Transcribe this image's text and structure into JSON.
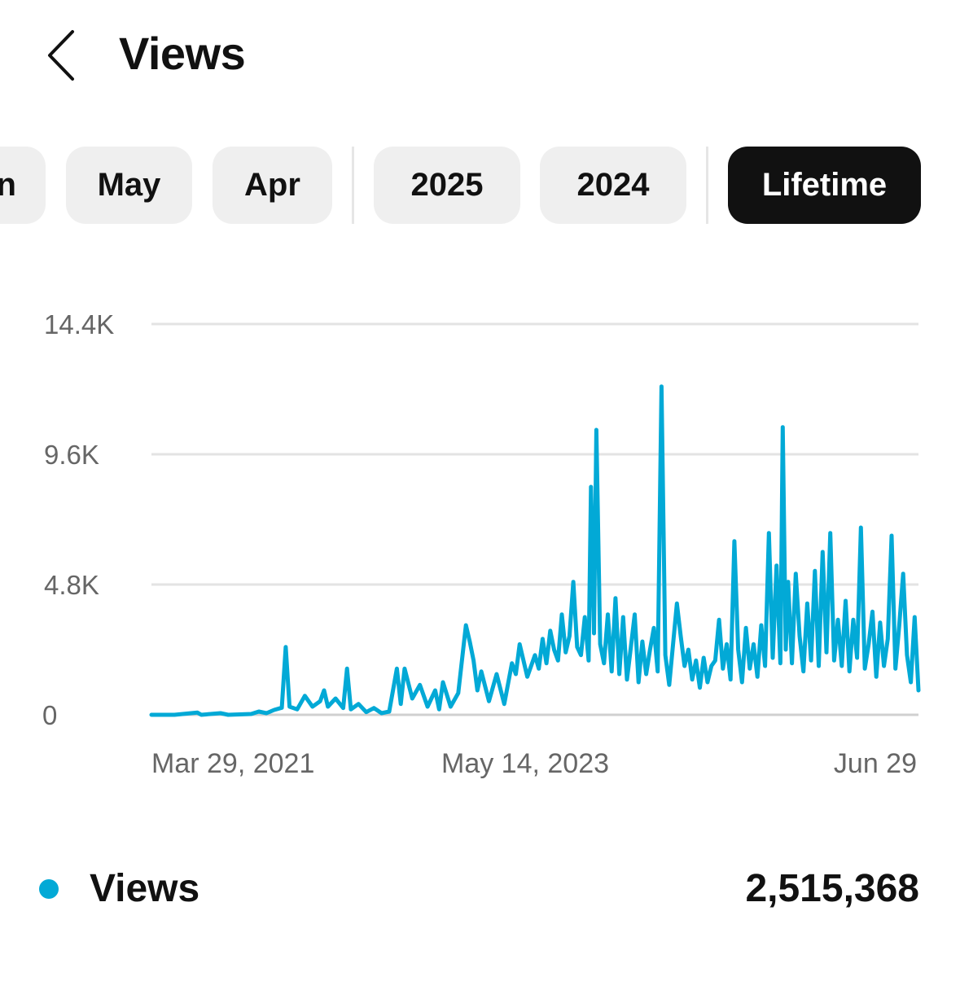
{
  "header": {
    "title": "Views",
    "back_icon": "chevron-left-icon"
  },
  "filters": {
    "chips": [
      {
        "label": "Jun",
        "active": false
      },
      {
        "label": "May",
        "active": false
      },
      {
        "label": "Apr",
        "active": false
      },
      {
        "label": "2025",
        "active": false
      },
      {
        "label": "2024",
        "active": false
      },
      {
        "label": "Lifetime",
        "active": true
      }
    ]
  },
  "colors": {
    "series": "#02a9d6",
    "active_chip": "#111111",
    "chip": "#efefef",
    "grid": "#e3e3e3",
    "axis_text": "#666666"
  },
  "chart_data": {
    "type": "line",
    "ylim": [
      0,
      14400
    ],
    "yticks": [
      "0",
      "4.8K",
      "9.6K",
      "14.4K"
    ],
    "ytick_values": [
      0,
      4800,
      9600,
      14400
    ],
    "xtick_labels": [
      "Mar 29, 2021",
      "May 14, 2023",
      "Jun 29"
    ],
    "grid": true,
    "series": [
      {
        "name": "Views",
        "color": "#02a9d6",
        "points": [
          [
            0.0,
            0
          ],
          [
            0.03,
            0
          ],
          [
            0.06,
            80
          ],
          [
            0.065,
            0
          ],
          [
            0.09,
            60
          ],
          [
            0.1,
            0
          ],
          [
            0.13,
            30
          ],
          [
            0.14,
            120
          ],
          [
            0.15,
            60
          ],
          [
            0.16,
            180
          ],
          [
            0.17,
            260
          ],
          [
            0.175,
            2500
          ],
          [
            0.18,
            300
          ],
          [
            0.19,
            200
          ],
          [
            0.2,
            700
          ],
          [
            0.21,
            300
          ],
          [
            0.22,
            500
          ],
          [
            0.225,
            900
          ],
          [
            0.23,
            300
          ],
          [
            0.24,
            600
          ],
          [
            0.25,
            250
          ],
          [
            0.255,
            1700
          ],
          [
            0.26,
            200
          ],
          [
            0.27,
            400
          ],
          [
            0.28,
            100
          ],
          [
            0.29,
            250
          ],
          [
            0.3,
            60
          ],
          [
            0.31,
            120
          ],
          [
            0.32,
            1700
          ],
          [
            0.325,
            400
          ],
          [
            0.33,
            1700
          ],
          [
            0.34,
            600
          ],
          [
            0.35,
            1100
          ],
          [
            0.36,
            300
          ],
          [
            0.37,
            900
          ],
          [
            0.375,
            200
          ],
          [
            0.38,
            1200
          ],
          [
            0.39,
            300
          ],
          [
            0.4,
            800
          ],
          [
            0.41,
            3300
          ],
          [
            0.415,
            2700
          ],
          [
            0.42,
            2000
          ],
          [
            0.425,
            900
          ],
          [
            0.43,
            1600
          ],
          [
            0.44,
            500
          ],
          [
            0.45,
            1500
          ],
          [
            0.46,
            400
          ],
          [
            0.47,
            1900
          ],
          [
            0.475,
            1500
          ],
          [
            0.48,
            2600
          ],
          [
            0.49,
            1400
          ],
          [
            0.5,
            2200
          ],
          [
            0.505,
            1700
          ],
          [
            0.51,
            2800
          ],
          [
            0.515,
            1900
          ],
          [
            0.52,
            3100
          ],
          [
            0.525,
            2400
          ],
          [
            0.53,
            2000
          ],
          [
            0.535,
            3700
          ],
          [
            0.54,
            2300
          ],
          [
            0.545,
            2900
          ],
          [
            0.55,
            4900
          ],
          [
            0.555,
            2500
          ],
          [
            0.56,
            2200
          ],
          [
            0.565,
            3600
          ],
          [
            0.57,
            2000
          ],
          [
            0.573,
            8400
          ],
          [
            0.577,
            3000
          ],
          [
            0.58,
            10500
          ],
          [
            0.585,
            2600
          ],
          [
            0.59,
            1900
          ],
          [
            0.595,
            3700
          ],
          [
            0.6,
            1600
          ],
          [
            0.605,
            4300
          ],
          [
            0.61,
            1500
          ],
          [
            0.615,
            3600
          ],
          [
            0.62,
            1300
          ],
          [
            0.625,
            2500
          ],
          [
            0.63,
            3700
          ],
          [
            0.635,
            1200
          ],
          [
            0.64,
            2700
          ],
          [
            0.645,
            1500
          ],
          [
            0.65,
            2400
          ],
          [
            0.655,
            3200
          ],
          [
            0.66,
            1600
          ],
          [
            0.665,
            12100
          ],
          [
            0.67,
            2200
          ],
          [
            0.675,
            1100
          ],
          [
            0.68,
            2600
          ],
          [
            0.685,
            4100
          ],
          [
            0.69,
            2900
          ],
          [
            0.695,
            1800
          ],
          [
            0.7,
            2400
          ],
          [
            0.705,
            1300
          ],
          [
            0.71,
            2000
          ],
          [
            0.715,
            1000
          ],
          [
            0.72,
            2100
          ],
          [
            0.725,
            1200
          ],
          [
            0.73,
            1800
          ],
          [
            0.735,
            2000
          ],
          [
            0.74,
            3500
          ],
          [
            0.745,
            1700
          ],
          [
            0.75,
            2600
          ],
          [
            0.755,
            1300
          ],
          [
            0.76,
            6400
          ],
          [
            0.765,
            2400
          ],
          [
            0.77,
            1200
          ],
          [
            0.775,
            3200
          ],
          [
            0.78,
            1700
          ],
          [
            0.785,
            2600
          ],
          [
            0.79,
            1400
          ],
          [
            0.795,
            3300
          ],
          [
            0.8,
            1800
          ],
          [
            0.805,
            6700
          ],
          [
            0.81,
            2100
          ],
          [
            0.815,
            5500
          ],
          [
            0.82,
            1900
          ],
          [
            0.823,
            10600
          ],
          [
            0.827,
            2400
          ],
          [
            0.83,
            4900
          ],
          [
            0.835,
            1900
          ],
          [
            0.84,
            5200
          ],
          [
            0.845,
            2900
          ],
          [
            0.85,
            1600
          ],
          [
            0.855,
            4100
          ],
          [
            0.86,
            2000
          ],
          [
            0.865,
            5300
          ],
          [
            0.87,
            1800
          ],
          [
            0.875,
            6000
          ],
          [
            0.88,
            2300
          ],
          [
            0.885,
            6700
          ],
          [
            0.89,
            2000
          ],
          [
            0.895,
            3500
          ],
          [
            0.9,
            1800
          ],
          [
            0.905,
            4200
          ],
          [
            0.91,
            1600
          ],
          [
            0.915,
            3500
          ],
          [
            0.92,
            2100
          ],
          [
            0.925,
            6900
          ],
          [
            0.93,
            1700
          ],
          [
            0.935,
            2600
          ],
          [
            0.94,
            3800
          ],
          [
            0.945,
            1400
          ],
          [
            0.95,
            3400
          ],
          [
            0.955,
            1800
          ],
          [
            0.96,
            2800
          ],
          [
            0.965,
            6600
          ],
          [
            0.97,
            1700
          ],
          [
            0.975,
            3300
          ],
          [
            0.98,
            5200
          ],
          [
            0.985,
            2200
          ],
          [
            0.99,
            1200
          ],
          [
            0.995,
            3600
          ],
          [
            1.0,
            900
          ]
        ]
      }
    ]
  },
  "legend": {
    "label": "Views",
    "total": "2,515,368"
  }
}
